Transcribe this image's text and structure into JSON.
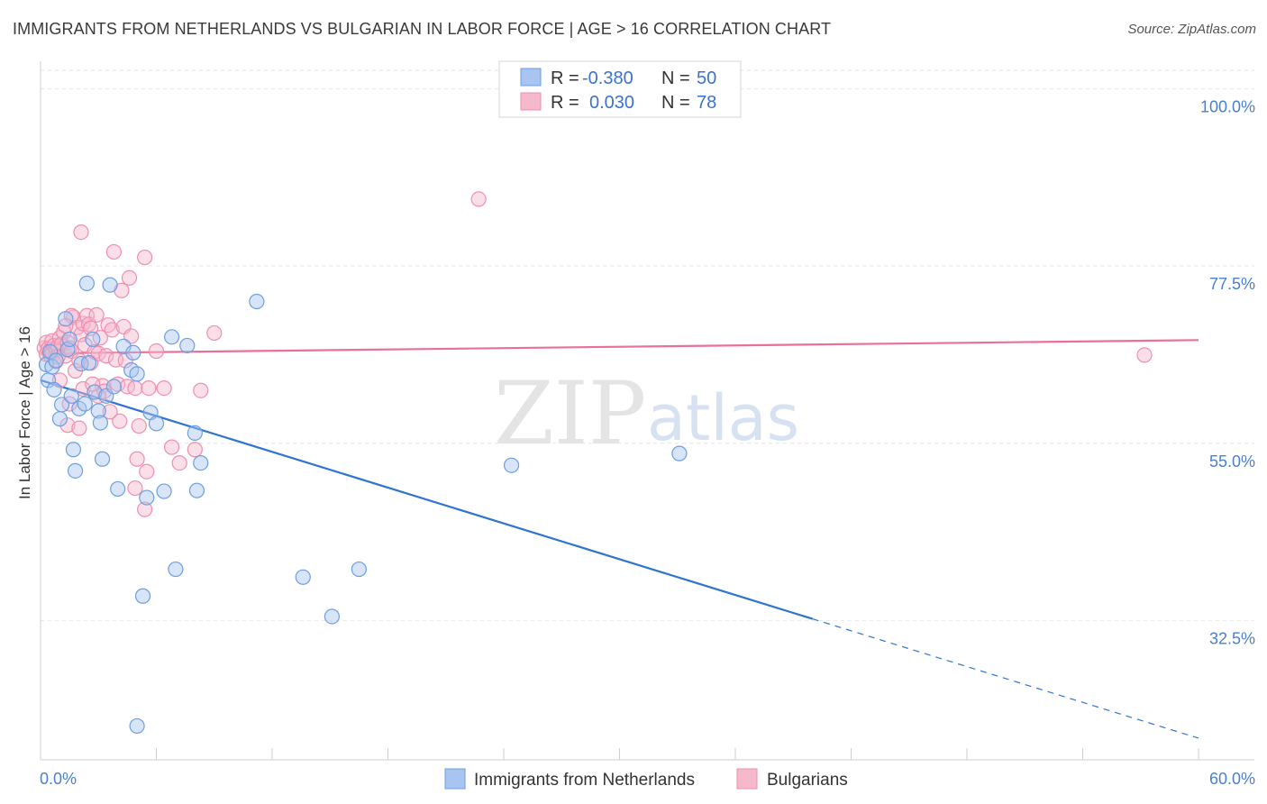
{
  "title": "IMMIGRANTS FROM NETHERLANDS VS BULGARIAN IN LABOR FORCE | AGE > 16 CORRELATION CHART",
  "source": "Source: ZipAtlas.com",
  "watermark": {
    "part1": "ZIP",
    "part2": "atlas"
  },
  "colors": {
    "blue_fill": "#a9c5ef",
    "blue_stroke": "#6d9ee0",
    "blue_line": "#2f74d0",
    "pink_fill": "#f6b8cb",
    "pink_stroke": "#ee8fae",
    "pink_line": "#e8709a",
    "grid": "#e6e6e6",
    "axis_label": "#4a7fd0"
  },
  "legend": {
    "rows": [
      {
        "r_label": "R =",
        "r_value": "-0.380",
        "n_label": "N =",
        "n_value": "50"
      },
      {
        "r_label": "R =",
        "r_value": "0.030",
        "n_label": "N =",
        "n_value": "78"
      }
    ]
  },
  "chart_data": {
    "type": "scatter",
    "title": "IMMIGRANTS FROM NETHERLANDS VS BULGARIAN IN LABOR FORCE | AGE > 16 CORRELATION CHART",
    "xlabel": "",
    "ylabel": "In Labor Force | Age > 16",
    "xlim": [
      0,
      60
    ],
    "ylim": [
      14.8,
      103.5
    ],
    "x_tick_labels": [
      "0.0%",
      "60.0%"
    ],
    "y_ticks": [
      32.5,
      55.0,
      77.5,
      100.0
    ],
    "y_tick_labels": [
      "32.5%",
      "55.0%",
      "77.5%",
      "100.0%"
    ],
    "grid": true,
    "series": [
      {
        "name": "Immigrants from Netherlands",
        "color": "blue",
        "R": -0.38,
        "N": 50,
        "trend": {
          "x0": 0,
          "y0": 63.0,
          "x1": 40,
          "y1": 32.7,
          "x_dash_end": 60
        },
        "points": [
          [
            0.3,
            65.0
          ],
          [
            0.4,
            63.0
          ],
          [
            0.5,
            66.6
          ],
          [
            0.6,
            64.7
          ],
          [
            0.7,
            61.8
          ],
          [
            0.8,
            65.5
          ],
          [
            1.0,
            58.1
          ],
          [
            1.1,
            59.9
          ],
          [
            1.3,
            70.8
          ],
          [
            1.4,
            66.9
          ],
          [
            1.5,
            68.2
          ],
          [
            1.6,
            61.0
          ],
          [
            1.7,
            54.2
          ],
          [
            1.8,
            51.5
          ],
          [
            2.0,
            59.4
          ],
          [
            2.1,
            65.1
          ],
          [
            2.3,
            60.0
          ],
          [
            2.4,
            75.3
          ],
          [
            2.5,
            65.2
          ],
          [
            2.7,
            68.2
          ],
          [
            2.8,
            61.5
          ],
          [
            3.0,
            59.1
          ],
          [
            3.1,
            57.6
          ],
          [
            3.2,
            53.0
          ],
          [
            3.4,
            61.0
          ],
          [
            3.6,
            75.1
          ],
          [
            3.8,
            62.2
          ],
          [
            4.0,
            49.2
          ],
          [
            4.3,
            67.3
          ],
          [
            4.7,
            64.3
          ],
          [
            4.8,
            66.5
          ],
          [
            5.0,
            63.8
          ],
          [
            5.3,
            35.6
          ],
          [
            5.5,
            48.1
          ],
          [
            5.7,
            58.9
          ],
          [
            6.0,
            57.5
          ],
          [
            6.4,
            48.9
          ],
          [
            6.8,
            68.5
          ],
          [
            7.0,
            39.0
          ],
          [
            7.6,
            67.4
          ],
          [
            8.0,
            56.3
          ],
          [
            8.1,
            49.0
          ],
          [
            8.3,
            52.5
          ],
          [
            11.2,
            73.0
          ],
          [
            13.6,
            38.0
          ],
          [
            15.1,
            33.0
          ],
          [
            16.5,
            39.0
          ],
          [
            24.4,
            52.2
          ],
          [
            33.1,
            53.7
          ],
          [
            5.0,
            19.1
          ]
        ]
      },
      {
        "name": "Bulgarians",
        "color": "pink",
        "R": 0.03,
        "N": 78,
        "trend": {
          "x0": 0,
          "y0": 66.4,
          "x1": 60,
          "y1": 68.1
        },
        "points": [
          [
            0.2,
            67.1
          ],
          [
            0.3,
            66.3
          ],
          [
            0.3,
            67.8
          ],
          [
            0.4,
            67.0
          ],
          [
            0.5,
            66.8
          ],
          [
            0.5,
            66.2
          ],
          [
            0.6,
            68.0
          ],
          [
            0.6,
            66.5
          ],
          [
            0.7,
            67.4
          ],
          [
            0.8,
            65.4
          ],
          [
            0.8,
            66.9
          ],
          [
            0.9,
            67.3
          ],
          [
            1.0,
            63.0
          ],
          [
            1.0,
            68.4
          ],
          [
            1.1,
            67.6
          ],
          [
            1.2,
            69.1
          ],
          [
            1.3,
            66.1
          ],
          [
            1.4,
            67.8
          ],
          [
            1.4,
            57.3
          ],
          [
            1.5,
            60.0
          ],
          [
            1.5,
            67.1
          ],
          [
            1.6,
            66.7
          ],
          [
            1.7,
            71.0
          ],
          [
            1.8,
            64.2
          ],
          [
            1.9,
            69.7
          ],
          [
            2.0,
            65.5
          ],
          [
            2.0,
            56.9
          ],
          [
            2.1,
            68.8
          ],
          [
            2.1,
            81.8
          ],
          [
            2.2,
            70.2
          ],
          [
            2.3,
            67.5
          ],
          [
            2.4,
            71.2
          ],
          [
            2.5,
            70.1
          ],
          [
            2.6,
            69.6
          ],
          [
            2.6,
            65.2
          ],
          [
            2.8,
            66.6
          ],
          [
            2.9,
            71.3
          ],
          [
            3.0,
            66.4
          ],
          [
            3.1,
            68.4
          ],
          [
            3.2,
            62.3
          ],
          [
            3.3,
            61.6
          ],
          [
            3.4,
            66.1
          ],
          [
            3.5,
            70.0
          ],
          [
            3.7,
            69.4
          ],
          [
            3.8,
            79.3
          ],
          [
            3.9,
            65.6
          ],
          [
            4.0,
            62.5
          ],
          [
            4.1,
            57.8
          ],
          [
            4.2,
            74.4
          ],
          [
            4.3,
            69.8
          ],
          [
            4.4,
            65.5
          ],
          [
            4.5,
            62.2
          ],
          [
            4.6,
            76.0
          ],
          [
            4.7,
            68.6
          ],
          [
            4.9,
            62.0
          ],
          [
            5.0,
            53.0
          ],
          [
            5.1,
            57.2
          ],
          [
            5.4,
            78.6
          ],
          [
            5.5,
            51.4
          ],
          [
            5.6,
            62.0
          ],
          [
            6.0,
            66.7
          ],
          [
            6.4,
            62.0
          ],
          [
            6.8,
            54.5
          ],
          [
            7.2,
            52.5
          ],
          [
            8.0,
            54.2
          ],
          [
            8.3,
            61.7
          ],
          [
            9.0,
            69.0
          ],
          [
            22.7,
            86.0
          ],
          [
            57.2,
            66.2
          ],
          [
            3.0,
            61.0
          ],
          [
            2.2,
            61.9
          ],
          [
            1.6,
            71.2
          ],
          [
            0.9,
            66.0
          ],
          [
            1.3,
            69.9
          ],
          [
            3.6,
            59.0
          ],
          [
            4.9,
            49.3
          ],
          [
            5.4,
            46.6
          ],
          [
            2.7,
            62.5
          ]
        ]
      }
    ],
    "legend_position": "top-center"
  },
  "bottom_legend": [
    {
      "label": "Immigrants from Netherlands"
    },
    {
      "label": "Bulgarians"
    }
  ]
}
